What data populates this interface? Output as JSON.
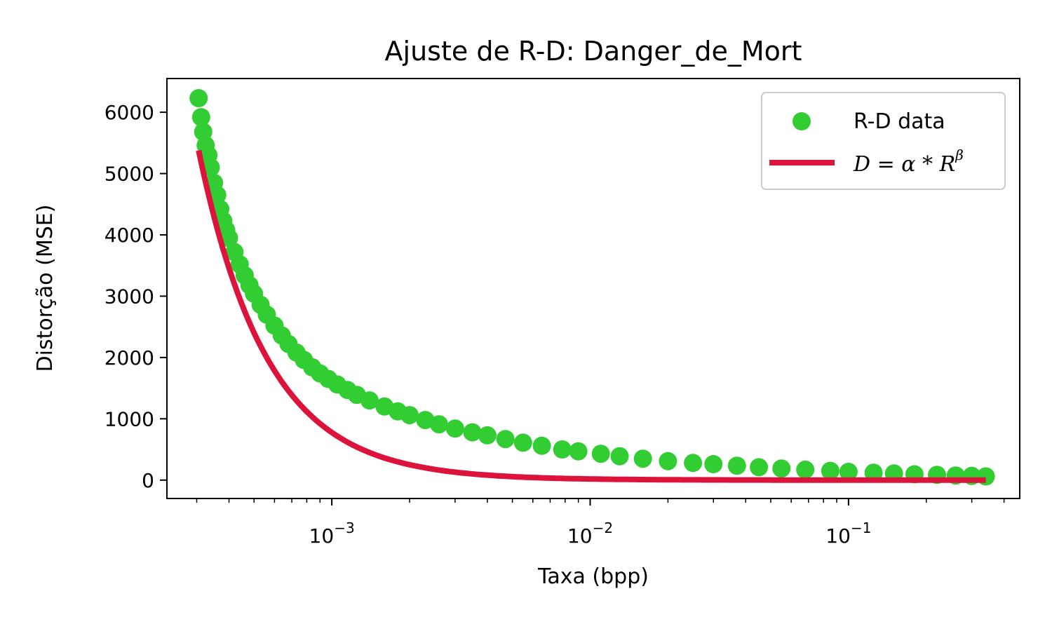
{
  "chart_data": {
    "type": "scatter",
    "title": "Ajuste de R-D: Danger_de_Mort",
    "xlabel": "Taxa (bpp)",
    "ylabel": "Distorção (MSE)",
    "x_scale": "log",
    "xlim": [
      0.00023,
      0.46
    ],
    "ylim": [
      -300,
      6550
    ],
    "x_ticks": [
      {
        "value": 0.001,
        "base": "10",
        "exp": "−3"
      },
      {
        "value": 0.01,
        "base": "10",
        "exp": "−2"
      },
      {
        "value": 0.1,
        "base": "10",
        "exp": "−1"
      }
    ],
    "y_ticks": [
      0,
      1000,
      2000,
      3000,
      4000,
      5000,
      6000
    ],
    "legend_position": "upper-right",
    "grid": false,
    "series": [
      {
        "name": "R-D data",
        "kind": "scatter",
        "color": "#32cd32",
        "points": [
          [
            0.000305,
            6230
          ],
          [
            0.000312,
            5920
          ],
          [
            0.000318,
            5680
          ],
          [
            0.000325,
            5460
          ],
          [
            0.000333,
            5300
          ],
          [
            0.00034,
            5100
          ],
          [
            0.00035,
            4850
          ],
          [
            0.00036,
            4650
          ],
          [
            0.00037,
            4420
          ],
          [
            0.00038,
            4230
          ],
          [
            0.00039,
            4080
          ],
          [
            0.0004,
            3950
          ],
          [
            0.00042,
            3720
          ],
          [
            0.00044,
            3520
          ],
          [
            0.00046,
            3340
          ],
          [
            0.00048,
            3180
          ],
          [
            0.0005,
            3040
          ],
          [
            0.00053,
            2860
          ],
          [
            0.00056,
            2700
          ],
          [
            0.0006,
            2520
          ],
          [
            0.00064,
            2360
          ],
          [
            0.00068,
            2220
          ],
          [
            0.00073,
            2080
          ],
          [
            0.00078,
            1960
          ],
          [
            0.00084,
            1840
          ],
          [
            0.0009,
            1740
          ],
          [
            0.00097,
            1650
          ],
          [
            0.00105,
            1560
          ],
          [
            0.00115,
            1470
          ],
          [
            0.00125,
            1390
          ],
          [
            0.0014,
            1300
          ],
          [
            0.0016,
            1200
          ],
          [
            0.0018,
            1120
          ],
          [
            0.002,
            1060
          ],
          [
            0.0023,
            980
          ],
          [
            0.0026,
            910
          ],
          [
            0.003,
            840
          ],
          [
            0.0035,
            780
          ],
          [
            0.004,
            730
          ],
          [
            0.0047,
            670
          ],
          [
            0.0055,
            610
          ],
          [
            0.0065,
            560
          ],
          [
            0.0078,
            500
          ],
          [
            0.009,
            470
          ],
          [
            0.011,
            430
          ],
          [
            0.013,
            390
          ],
          [
            0.016,
            350
          ],
          [
            0.02,
            310
          ],
          [
            0.025,
            280
          ],
          [
            0.03,
            260
          ],
          [
            0.037,
            235
          ],
          [
            0.045,
            210
          ],
          [
            0.055,
            190
          ],
          [
            0.068,
            170
          ],
          [
            0.085,
            150
          ],
          [
            0.1,
            135
          ],
          [
            0.125,
            120
          ],
          [
            0.15,
            108
          ],
          [
            0.18,
            95
          ],
          [
            0.22,
            85
          ],
          [
            0.26,
            75
          ],
          [
            0.3,
            68
          ],
          [
            0.34,
            60
          ]
        ]
      },
      {
        "name": "D = α * R^β",
        "kind": "line",
        "color": "#dc143c",
        "alpha": 0.01,
        "beta": -1.63,
        "x_range": [
          0.000305,
          0.34
        ]
      }
    ],
    "legend": {
      "scatter_label": "R-D data",
      "fit_label_main": "D = α * R",
      "fit_label_exp": "β"
    }
  }
}
